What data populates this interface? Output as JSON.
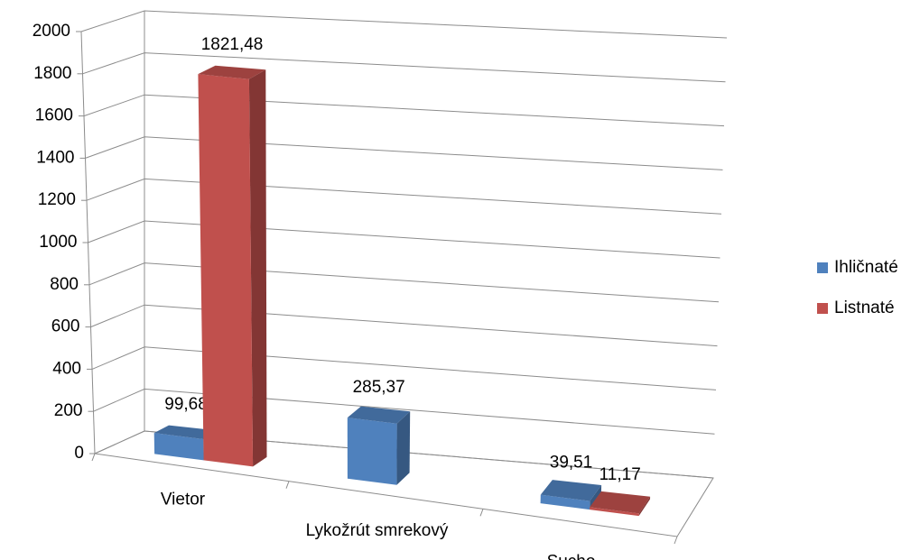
{
  "chart_data": {
    "type": "bar3d",
    "categories": [
      "Vietor",
      "Lykožrút smrekový",
      "Sucho"
    ],
    "series": [
      {
        "name": "Ihličnaté",
        "color": "#4f81bd",
        "values": [
          99.68,
          285.37,
          39.51
        ],
        "value_labels": [
          "99,68",
          "285,37",
          "39,51"
        ]
      },
      {
        "name": "Listnaté",
        "color": "#c0504d",
        "values": [
          1821.48,
          null,
          11.17
        ],
        "value_labels": [
          "1821,48",
          null,
          "11,17"
        ]
      }
    ],
    "ylim": [
      0,
      2000
    ],
    "yticks": [
      0,
      200,
      400,
      600,
      800,
      1000,
      1200,
      1400,
      1600,
      1800,
      2000
    ],
    "grid": true,
    "legend": "right"
  }
}
